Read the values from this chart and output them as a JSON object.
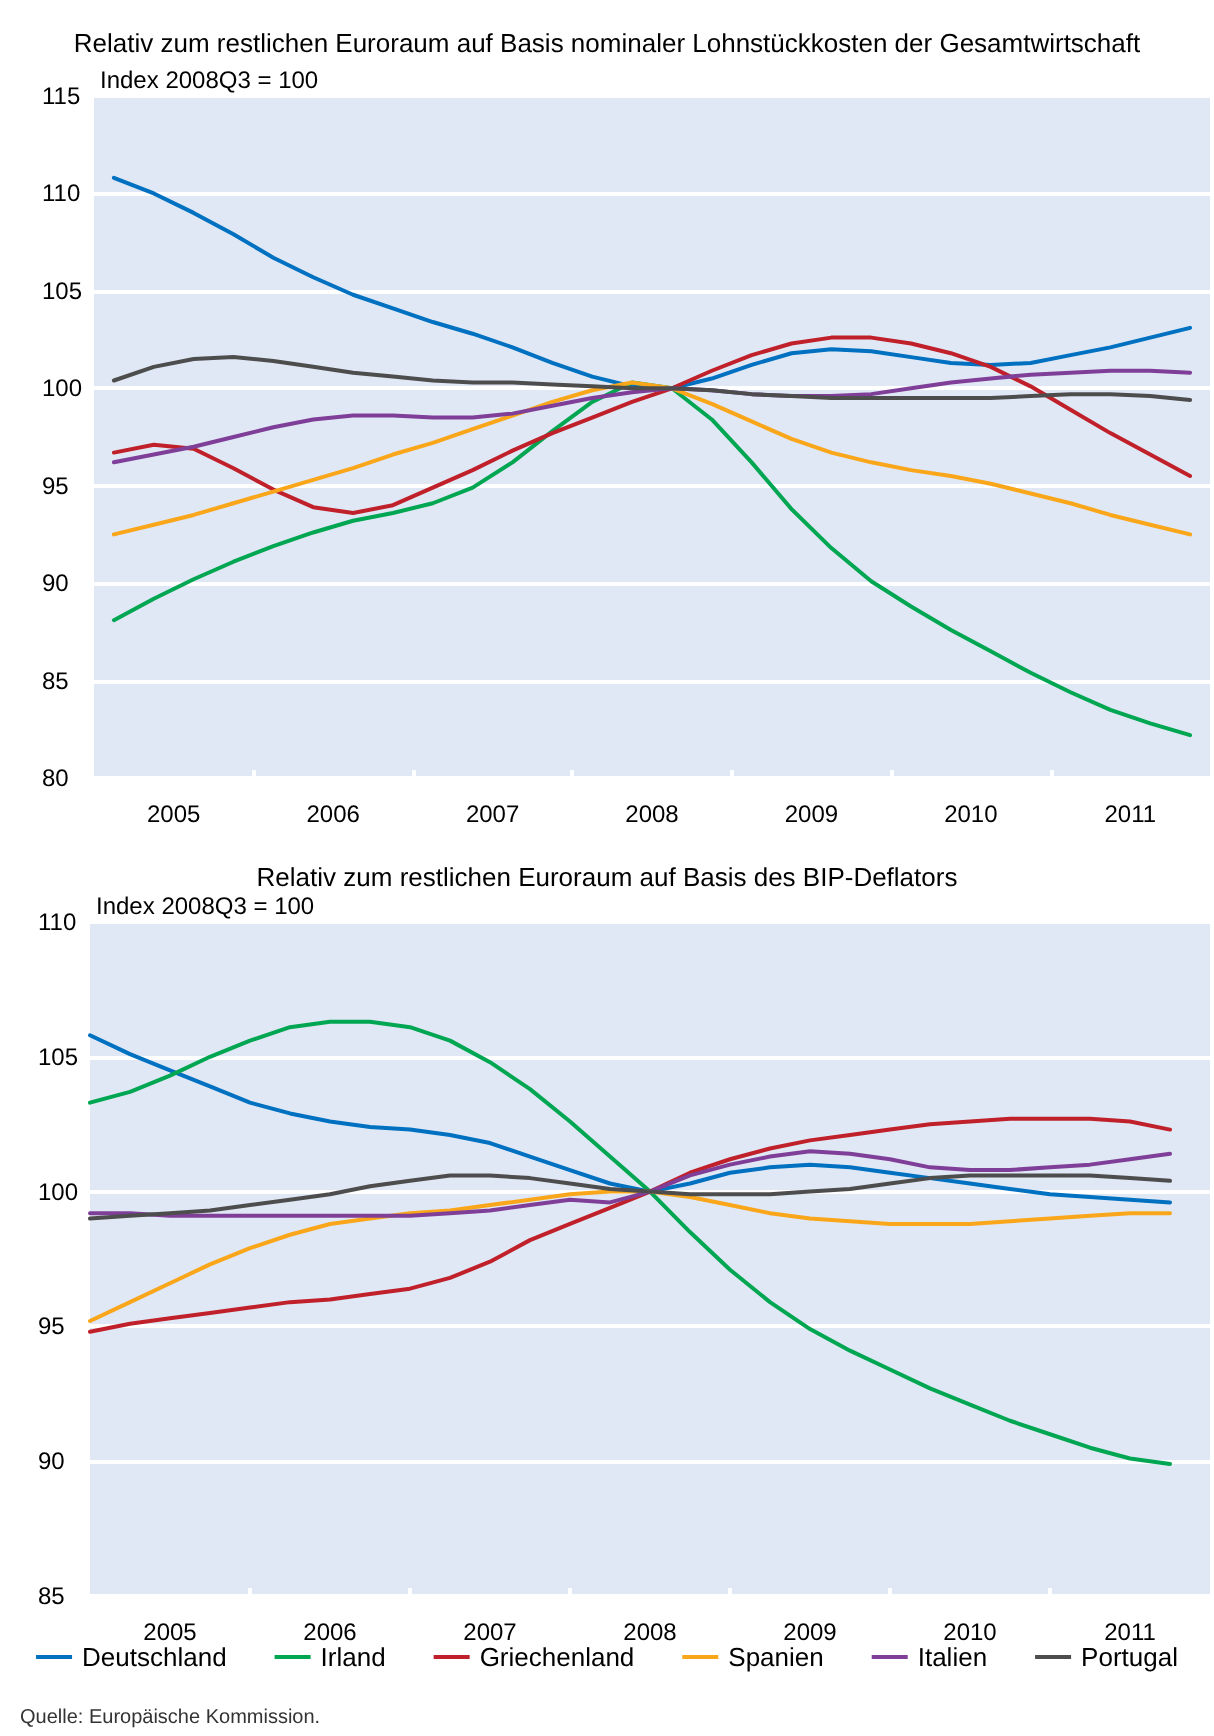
{
  "chart_data": [
    {
      "type": "line",
      "title": "Relativ zum restlichen Euroraum auf Basis nominaler Lohnstückkosten der Gesamtwirtschaft",
      "ylabel": "Index 2008Q3 = 100",
      "x": [
        2005.125,
        2005.375,
        2005.625,
        2005.875,
        2006.125,
        2006.375,
        2006.625,
        2006.875,
        2007.125,
        2007.375,
        2007.625,
        2007.875,
        2008.125,
        2008.375,
        2008.625,
        2008.875,
        2009.125,
        2009.375,
        2009.625,
        2009.875,
        2010.125,
        2010.375,
        2010.625,
        2010.875,
        2011.125,
        2011.375,
        2011.625,
        2011.875
      ],
      "xlim": [
        2005,
        2012
      ],
      "xticks": [
        {
          "value": 2005.5,
          "label": "2005"
        },
        {
          "value": 2006,
          "label": null
        },
        {
          "value": 2006.5,
          "label": "2006"
        },
        {
          "value": 2007,
          "label": null
        },
        {
          "value": 2007.5,
          "label": "2007"
        },
        {
          "value": 2008,
          "label": null
        },
        {
          "value": 2008.5,
          "label": "2008"
        },
        {
          "value": 2009,
          "label": null
        },
        {
          "value": 2009.5,
          "label": "2009"
        },
        {
          "value": 2010,
          "label": null
        },
        {
          "value": 2010.5,
          "label": "2010"
        },
        {
          "value": 2011,
          "label": null
        },
        {
          "value": 2011.5,
          "label": "2011"
        }
      ],
      "ylim": [
        80,
        115
      ],
      "yticks": [
        80,
        85,
        90,
        95,
        100,
        105,
        110,
        115
      ],
      "grid": "y",
      "legend": false,
      "marker": "none",
      "line_style": "solid",
      "series": [
        {
          "color": "#0070c0",
          "values": [
            110.8,
            110.0,
            109.0,
            107.9,
            106.7,
            105.7,
            104.8,
            104.1,
            103.4,
            102.8,
            102.1,
            101.3,
            100.6,
            100.1,
            100.0,
            100.5,
            101.2,
            101.8,
            102.0,
            101.9,
            101.6,
            101.3,
            101.2,
            101.3,
            101.7,
            102.1,
            102.6,
            103.1
          ]
        },
        {
          "color": "#00a651",
          "values": [
            88.1,
            89.2,
            90.2,
            91.1,
            91.9,
            92.6,
            93.2,
            93.6,
            94.1,
            94.9,
            96.2,
            97.8,
            99.3,
            100.3,
            100.0,
            98.4,
            96.2,
            93.8,
            91.8,
            90.1,
            88.8,
            87.6,
            86.5,
            85.4,
            84.4,
            83.5,
            82.8,
            82.2
          ]
        },
        {
          "color": "#c0202a",
          "values": [
            96.7,
            97.1,
            96.9,
            95.9,
            94.8,
            93.9,
            93.6,
            94.0,
            94.9,
            95.8,
            96.8,
            97.7,
            98.5,
            99.3,
            100.0,
            100.9,
            101.7,
            102.3,
            102.6,
            102.6,
            102.3,
            101.8,
            101.1,
            100.1,
            98.9,
            97.7,
            96.6,
            95.5
          ]
        },
        {
          "color": "#f9a61a",
          "values": [
            92.5,
            93.0,
            93.5,
            94.1,
            94.7,
            95.3,
            95.9,
            96.6,
            97.2,
            97.9,
            98.6,
            99.3,
            99.9,
            100.3,
            100.0,
            99.2,
            98.3,
            97.4,
            96.7,
            96.2,
            95.8,
            95.5,
            95.1,
            94.6,
            94.1,
            93.5,
            93.0,
            92.5
          ]
        },
        {
          "color": "#7f3f98",
          "values": [
            96.2,
            96.6,
            97.0,
            97.5,
            98.0,
            98.4,
            98.6,
            98.6,
            98.5,
            98.5,
            98.7,
            99.1,
            99.5,
            99.8,
            100.0,
            99.9,
            99.7,
            99.6,
            99.6,
            99.7,
            100.0,
            100.3,
            100.5,
            100.7,
            100.8,
            100.9,
            100.9,
            100.8
          ]
        },
        {
          "color": "#4d4d4d",
          "values": [
            100.4,
            101.1,
            101.5,
            101.6,
            101.4,
            101.1,
            100.8,
            100.6,
            100.4,
            100.3,
            100.3,
            100.2,
            100.1,
            100.0,
            100.0,
            99.9,
            99.7,
            99.6,
            99.5,
            99.5,
            99.5,
            99.5,
            99.5,
            99.6,
            99.7,
            99.7,
            99.6,
            99.4
          ]
        }
      ]
    },
    {
      "type": "line",
      "title": "Relativ zum restlichen Euroraum auf Basis des BIP-Deflators",
      "ylabel": "Index 2008Q3 = 100",
      "annotations": [
        "Quelle: Europäische Kommission."
      ],
      "x": [
        2005.0,
        2005.25,
        2005.5,
        2005.75,
        2006.0,
        2006.25,
        2006.5,
        2006.75,
        2007.0,
        2007.25,
        2007.5,
        2007.75,
        2008.0,
        2008.25,
        2008.5,
        2008.75,
        2009.0,
        2009.25,
        2009.5,
        2009.75,
        2010.0,
        2010.25,
        2010.5,
        2010.75,
        2011.0,
        2011.25,
        2011.5,
        2011.75
      ],
      "xlim": [
        2005,
        2012
      ],
      "xticks": [
        {
          "value": 2005.5,
          "label": "2005"
        },
        {
          "value": 2006,
          "label": null
        },
        {
          "value": 2006.5,
          "label": "2006"
        },
        {
          "value": 2007,
          "label": null
        },
        {
          "value": 2007.5,
          "label": "2007"
        },
        {
          "value": 2008,
          "label": null
        },
        {
          "value": 2008.5,
          "label": "2008"
        },
        {
          "value": 2009,
          "label": null
        },
        {
          "value": 2009.5,
          "label": "2009"
        },
        {
          "value": 2010,
          "label": null
        },
        {
          "value": 2010.5,
          "label": "2010"
        },
        {
          "value": 2011,
          "label": null
        },
        {
          "value": 2011.5,
          "label": "2011"
        }
      ],
      "ylim": [
        85,
        110
      ],
      "yticks": [
        85,
        90,
        95,
        100,
        105,
        110
      ],
      "grid": "y",
      "legend": "bottom",
      "marker": "none",
      "line_style": "solid",
      "series": [
        {
          "name": "Deutschland",
          "color": "#0070c0",
          "values": [
            105.8,
            105.1,
            104.5,
            103.9,
            103.3,
            102.9,
            102.6,
            102.4,
            102.3,
            102.1,
            101.8,
            101.3,
            100.8,
            100.3,
            100.0,
            100.3,
            100.7,
            100.9,
            101.0,
            100.9,
            100.7,
            100.5,
            100.3,
            100.1,
            99.9,
            99.8,
            99.7,
            99.6
          ]
        },
        {
          "name": "Irland",
          "color": "#00a651",
          "values": [
            103.3,
            103.7,
            104.3,
            105.0,
            105.6,
            106.1,
            106.3,
            106.3,
            106.1,
            105.6,
            104.8,
            103.8,
            102.6,
            101.3,
            100.0,
            98.5,
            97.1,
            95.9,
            94.9,
            94.1,
            93.4,
            92.7,
            92.1,
            91.5,
            91.0,
            90.5,
            90.1,
            89.9
          ]
        },
        {
          "name": "Griechenland",
          "color": "#c0202a",
          "values": [
            94.8,
            95.1,
            95.3,
            95.5,
            95.7,
            95.9,
            96.0,
            96.2,
            96.4,
            96.8,
            97.4,
            98.2,
            98.8,
            99.4,
            100.0,
            100.7,
            101.2,
            101.6,
            101.9,
            102.1,
            102.3,
            102.5,
            102.6,
            102.7,
            102.7,
            102.7,
            102.6,
            102.3
          ]
        },
        {
          "name": "Spanien",
          "color": "#f9a61a",
          "values": [
            95.2,
            95.9,
            96.6,
            97.3,
            97.9,
            98.4,
            98.8,
            99.0,
            99.2,
            99.3,
            99.5,
            99.7,
            99.9,
            100.0,
            100.0,
            99.8,
            99.5,
            99.2,
            99.0,
            98.9,
            98.8,
            98.8,
            98.8,
            98.9,
            99.0,
            99.1,
            99.2,
            99.2
          ]
        },
        {
          "name": "Italien",
          "color": "#7f3f98",
          "values": [
            99.2,
            99.2,
            99.1,
            99.1,
            99.1,
            99.1,
            99.1,
            99.1,
            99.1,
            99.2,
            99.3,
            99.5,
            99.7,
            99.6,
            100.0,
            100.6,
            101.0,
            101.3,
            101.5,
            101.4,
            101.2,
            100.9,
            100.8,
            100.8,
            100.9,
            101.0,
            101.2,
            101.4
          ]
        },
        {
          "name": "Portugal",
          "color": "#4d4d4d",
          "values": [
            99.0,
            99.1,
            99.2,
            99.3,
            99.5,
            99.7,
            99.9,
            100.2,
            100.4,
            100.6,
            100.6,
            100.5,
            100.3,
            100.1,
            100.0,
            99.9,
            99.9,
            99.9,
            100.0,
            100.1,
            100.3,
            100.5,
            100.6,
            100.6,
            100.6,
            100.6,
            100.5,
            100.4
          ]
        }
      ]
    }
  ]
}
